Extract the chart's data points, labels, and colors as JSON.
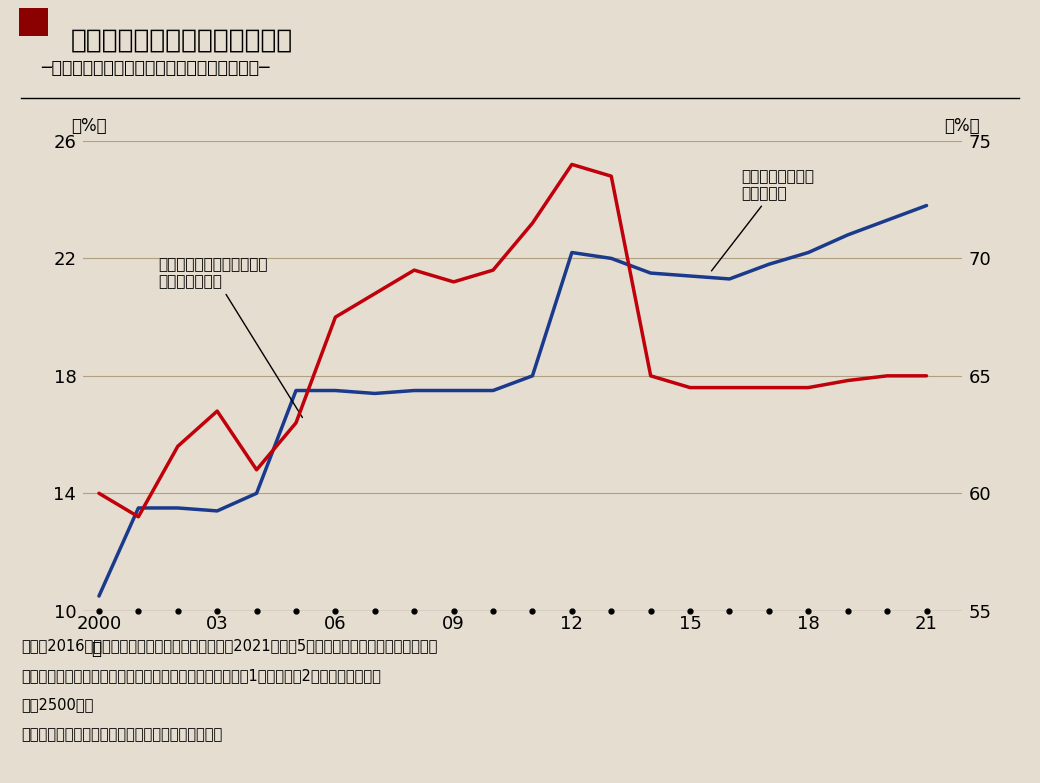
{
  "title_main": "海外現地生産比率の上昇は続く",
  "title_sub": "─海外現地生産比率と企業の割合（上場企業）─",
  "background_color": "#e5ddd0",
  "plot_bg_color": "#e5ddd0",
  "title_box_color": "#8B0000",
  "years": [
    2000,
    2001,
    2002,
    2003,
    2004,
    2005,
    2006,
    2007,
    2008,
    2009,
    2010,
    2011,
    2012,
    2013,
    2014,
    2015,
    2016,
    2017,
    2018,
    2019,
    2020,
    2021
  ],
  "blue_data": [
    10.5,
    13.5,
    13.5,
    13.4,
    14.0,
    17.5,
    17.5,
    17.4,
    17.5,
    17.5,
    17.5,
    18.0,
    22.2,
    22.0,
    21.5,
    21.4,
    21.3,
    21.8,
    22.2,
    22.8,
    23.3,
    23.8
  ],
  "red_data": [
    60.0,
    59.0,
    62.0,
    63.5,
    61.0,
    63.0,
    67.5,
    68.5,
    69.5,
    69.0,
    69.5,
    71.5,
    74.0,
    73.5,
    65.0,
    64.5,
    64.5,
    64.5,
    64.5,
    64.8,
    65.0,
    65.0
  ],
  "left_ylim": [
    10,
    26
  ],
  "right_ylim": [
    55,
    75
  ],
  "left_yticks": [
    10,
    14,
    18,
    22,
    26
  ],
  "right_yticks": [
    55,
    60,
    65,
    70,
    75
  ],
  "xticks": [
    2000,
    2003,
    2006,
    2009,
    2012,
    2015,
    2018,
    2021
  ],
  "blue_color": "#1a3a8c",
  "red_color": "#c0000a",
  "grid_color": "#b0a080",
  "note_line1": "（注）2016年度は「実績見込み」で、それ以降は2021年度（5年後）の「見込み」を線形補完し",
  "note_line2": "　　たもの。「上場企業」は東京、名古屋の証券取引所第1部および第2部上場全企業（約",
  "note_line3": "　　2500社）",
  "note_line4": "（出所）内閣府よりみずほ証券金融市場調査部作成",
  "label_left": "（%）",
  "label_right": "（%）",
  "annotation_blue_text": "海外現地生産比率\n（左目盛）",
  "annotation_red_text": "海外現地生産を行う企業の\n割合（右目盛）",
  "xlabel_year": "年"
}
